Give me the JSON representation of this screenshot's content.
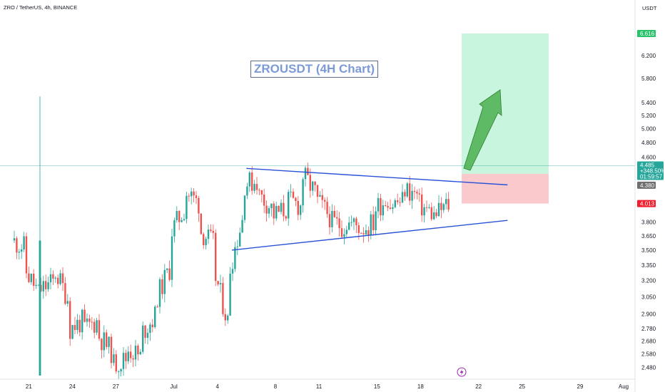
{
  "symbol_line": "ZRO / TetherUS, 4h, BINANCE",
  "currency": "USDT",
  "title": "ZROUSDT (4H Chart)",
  "price_axis": {
    "ticks": [
      "6.200",
      "5.800",
      "5.400",
      "5.200",
      "5.000",
      "4.800",
      "4.600",
      "3.800",
      "3.650",
      "3.500",
      "3.350",
      "3.200",
      "3.050",
      "2.900",
      "2.780",
      "2.680",
      "2.580",
      "2.480"
    ],
    "target_label": "6.616",
    "current_price": "4.485",
    "change": "+348.50%",
    "countdown": "01:59:57",
    "entry_label": "4.380",
    "stop_label": "4.013"
  },
  "time_axis": {
    "labels": [
      "21",
      "24",
      "27",
      "Jul",
      "4",
      "8",
      "11",
      "15",
      "18",
      "22",
      "25",
      "29",
      "Aug"
    ]
  },
  "colors": {
    "up": "#26a69a",
    "down": "#ef5350",
    "trendline": "#2a52d6",
    "target_zone": "#c8f5dd",
    "stop_zone": "#f9c9cc",
    "arrow": "#4caf50"
  },
  "chart_data": {
    "type": "candlestick",
    "title": "ZROUSDT (4H Chart)",
    "interval": "4h",
    "exchange": "BINANCE",
    "pair": "ZRO / TetherUS",
    "x_range": [
      "2024-06-20",
      "2024-08-01"
    ],
    "price_path": [
      {
        "date": "2024-06-20",
        "price": 3.5
      },
      {
        "date": "2024-06-20",
        "price": 3.6
      },
      {
        "date": "2024-06-21",
        "price": 3.52
      },
      {
        "date": "2024-06-21",
        "price": 3.28
      },
      {
        "date": "2024-06-22",
        "price": 3.05
      },
      {
        "date": "2024-06-22",
        "price": 3.12
      },
      {
        "date": "2024-06-23",
        "price": 3.2
      },
      {
        "date": "2024-06-23",
        "price": 3.28
      },
      {
        "date": "2024-06-24",
        "price": 3.0
      },
      {
        "date": "2024-06-24",
        "price": 2.78
      },
      {
        "date": "2024-06-25",
        "price": 2.85
      },
      {
        "date": "2024-06-25",
        "price": 2.78
      },
      {
        "date": "2024-06-26",
        "price": 2.85
      },
      {
        "date": "2024-06-26",
        "price": 2.72
      },
      {
        "date": "2024-06-27",
        "price": 2.58
      },
      {
        "date": "2024-06-27",
        "price": 2.5
      },
      {
        "date": "2024-06-28",
        "price": 2.55
      },
      {
        "date": "2024-06-28",
        "price": 2.62
      },
      {
        "date": "2024-06-29",
        "price": 2.55
      },
      {
        "date": "2024-06-29",
        "price": 2.75
      },
      {
        "date": "2024-06-30",
        "price": 2.9
      },
      {
        "date": "2024-06-30",
        "price": 3.05
      },
      {
        "date": "2024-07-01",
        "price": 3.35
      },
      {
        "date": "2024-07-01",
        "price": 3.7
      },
      {
        "date": "2024-07-02",
        "price": 3.98
      },
      {
        "date": "2024-07-02",
        "price": 4.15
      },
      {
        "date": "2024-07-03",
        "price": 4.0
      },
      {
        "date": "2024-07-03",
        "price": 3.7
      },
      {
        "date": "2024-07-04",
        "price": 3.55
      },
      {
        "date": "2024-07-04",
        "price": 3.25
      },
      {
        "date": "2024-07-05",
        "price": 2.78
      },
      {
        "date": "2024-07-05",
        "price": 3.3
      },
      {
        "date": "2024-07-06",
        "price": 3.9
      },
      {
        "date": "2024-07-06",
        "price": 4.25
      },
      {
        "date": "2024-07-07",
        "price": 4.3
      },
      {
        "date": "2024-07-07",
        "price": 4.12
      },
      {
        "date": "2024-07-08",
        "price": 3.95
      },
      {
        "date": "2024-07-08",
        "price": 3.88
      },
      {
        "date": "2024-07-09",
        "price": 3.95
      },
      {
        "date": "2024-07-09",
        "price": 4.05
      },
      {
        "date": "2024-07-10",
        "price": 3.98
      },
      {
        "date": "2024-07-10",
        "price": 4.38
      },
      {
        "date": "2024-07-11",
        "price": 4.12
      },
      {
        "date": "2024-07-11",
        "price": 4.05
      },
      {
        "date": "2024-07-12",
        "price": 3.85
      },
      {
        "date": "2024-07-12",
        "price": 3.8
      },
      {
        "date": "2024-07-13",
        "price": 3.75
      },
      {
        "date": "2024-07-13",
        "price": 3.8
      },
      {
        "date": "2024-07-14",
        "price": 3.75
      },
      {
        "date": "2024-07-14",
        "price": 3.72
      },
      {
        "date": "2024-07-15",
        "price": 3.8
      },
      {
        "date": "2024-07-15",
        "price": 3.95
      },
      {
        "date": "2024-07-16",
        "price": 4.1
      },
      {
        "date": "2024-07-16",
        "price": 4.0
      },
      {
        "date": "2024-07-17",
        "price": 4.05
      },
      {
        "date": "2024-07-17",
        "price": 4.2
      },
      {
        "date": "2024-07-18",
        "price": 4.1
      },
      {
        "date": "2024-07-18",
        "price": 4.0
      },
      {
        "date": "2024-07-19",
        "price": 3.9
      },
      {
        "date": "2024-07-19",
        "price": 3.85
      },
      {
        "date": "2024-07-20",
        "price": 4.0
      },
      {
        "date": "2024-07-20",
        "price": 4.485
      }
    ],
    "trendlines": [
      {
        "name": "",
        "from": {
          "date": "2024-07-06",
          "price": 4.45
        },
        "to": {
          "date": "2024-07-24",
          "price": 4.24
        }
      },
      {
        "name": "",
        "from": {
          "date": "2024-07-05",
          "price": 3.5
        },
        "to": {
          "date": "2024-07-24",
          "price": 3.82
        }
      }
    ],
    "position": {
      "entry": 4.38,
      "target": 6.616,
      "stop": 4.013
    },
    "current_price": 4.485,
    "change_percent": "+348.50%",
    "y_scale": "log",
    "y_range": [
      2.43,
      6.9
    ],
    "grid": false,
    "legend": "none"
  }
}
